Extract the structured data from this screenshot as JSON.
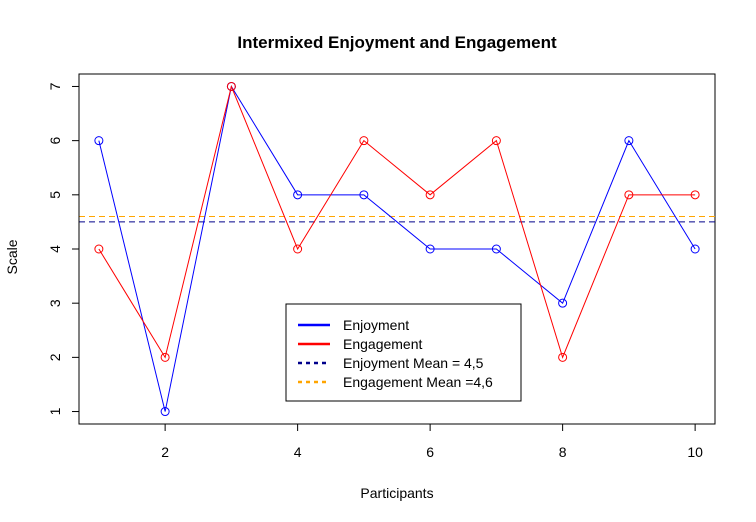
{
  "chart_data": {
    "type": "line",
    "title": "Intermixed Enjoyment and Engagement",
    "xlabel": "Participants",
    "ylabel": "Scale",
    "x": [
      1,
      2,
      3,
      4,
      5,
      6,
      7,
      8,
      9,
      10
    ],
    "xlim": [
      0.7,
      10.3
    ],
    "ylim": [
      0.77,
      7.23
    ],
    "x_ticks": [
      2,
      4,
      6,
      8,
      10
    ],
    "y_ticks": [
      1,
      2,
      3,
      4,
      5,
      6,
      7
    ],
    "grid": false,
    "legend_position": "bottom-center",
    "series": [
      {
        "name": "Enjoyment",
        "color": "#0000ff",
        "values": [
          6,
          1,
          7,
          5,
          5,
          4,
          4,
          3,
          6,
          4
        ]
      },
      {
        "name": "Engagement",
        "color": "#ff0000",
        "values": [
          4,
          2,
          7,
          4,
          6,
          5,
          6,
          2,
          5,
          5
        ]
      }
    ],
    "reference_lines": [
      {
        "name": "Enjoyment Mean = 4,5",
        "value": 4.5,
        "color": "#00008b",
        "style": "dashed"
      },
      {
        "name": "Engagement Mean =4,6",
        "value": 4.6,
        "color": "#ffa500",
        "style": "dashed"
      }
    ]
  }
}
